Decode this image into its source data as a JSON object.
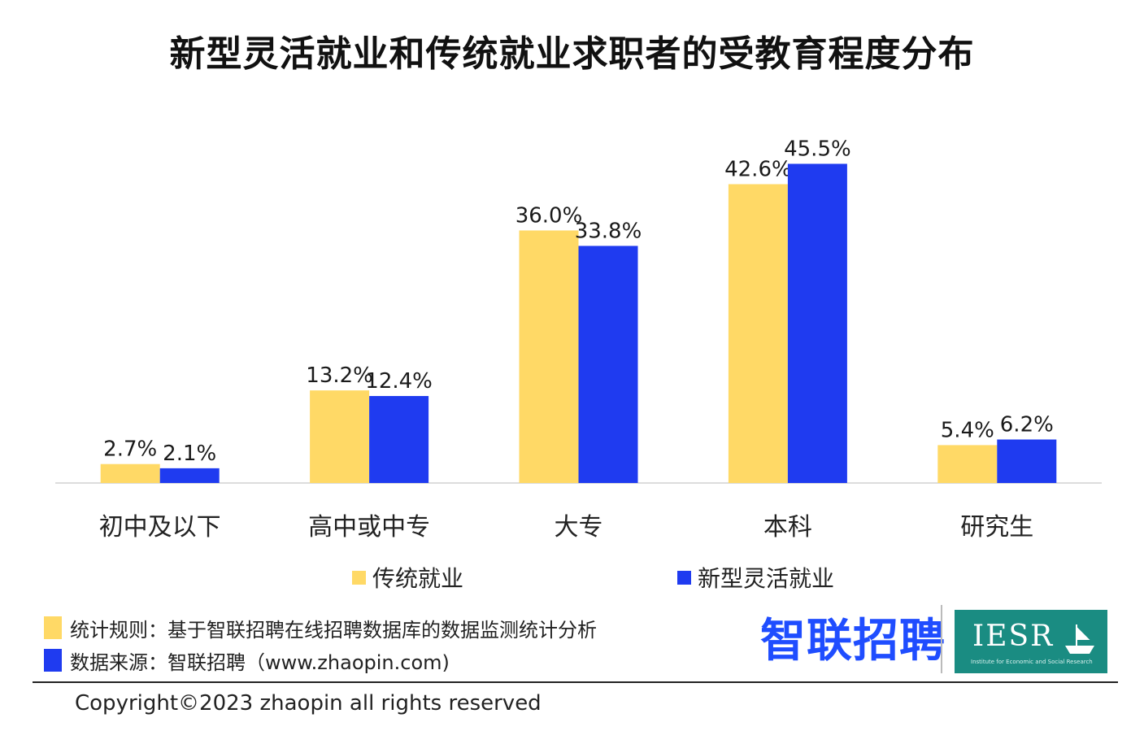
{
  "title": "新型灵活就业和传统就业求职者的受教育程度分布",
  "chart_data": {
    "type": "bar",
    "title": "新型灵活就业和传统就业求职者的受教育程度分布",
    "categories": [
      "初中及以下",
      "高中或中专",
      "大专",
      "本科",
      "研究生"
    ],
    "series": [
      {
        "name": "传统就业",
        "color": "#FFD966",
        "values": [
          2.7,
          13.2,
          36.0,
          42.6,
          5.4
        ],
        "labels": [
          "2.7%",
          "13.2%",
          "36.0%",
          "42.6%",
          "5.4%"
        ]
      },
      {
        "name": "新型灵活就业",
        "color": "#1F3BF0",
        "values": [
          2.1,
          12.4,
          33.8,
          45.5,
          6.2
        ],
        "labels": [
          "2.1%",
          "12.4%",
          "33.8%",
          "45.5%",
          "6.2%"
        ]
      }
    ],
    "ylim": [
      0,
      50
    ],
    "grid": false,
    "legend_position": "bottom"
  },
  "legend": [
    {
      "label": "传统就业",
      "color": "#FFD966"
    },
    {
      "label": "新型灵活就业",
      "color": "#1F3BF0"
    }
  ],
  "notes": [
    {
      "text": "统计规则：基于智联招聘在线招聘数据库的数据监测统计分析",
      "color": "#FFD966"
    },
    {
      "text": "数据来源：智联招聘（www.zhaopin.com)",
      "color": "#1F3BF0"
    }
  ],
  "logos": {
    "zhaopin": "智联招聘",
    "iesr": "IESR",
    "iesr_subtitle": "Institute for Economic and Social Research"
  },
  "copyright": "Copyright©2023 zhaopin all rights reserved"
}
